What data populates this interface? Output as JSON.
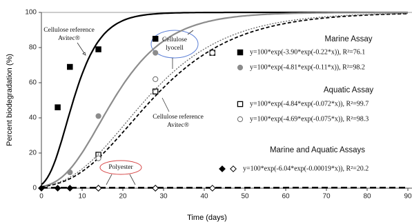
{
  "chart_data": {
    "type": "gompertz-scatter",
    "x_label": "Time (days)",
    "y_label": "Percent biodegradation (%)",
    "xlim": [
      0,
      90
    ],
    "xticks": [
      0,
      10,
      20,
      30,
      40,
      50,
      60,
      70,
      80,
      90
    ],
    "ylim": [
      0,
      100
    ],
    "yticks": [
      0,
      20,
      40,
      60,
      80,
      100
    ],
    "groups": [
      {
        "title": "Marine Assay",
        "series": [
          {
            "name": "y=100*exp(-3.90*exp(-0.22*x)), R²=76.1",
            "color": "#000000",
            "line": "solid",
            "fit": {
              "a": 3.9,
              "b": 0.22
            },
            "points": [
              {
                "marker": "square-filled",
                "x": [
                  4,
                  7,
                  14,
                  28
                ],
                "values": [
                  46,
                  69,
                  79,
                  85
                ]
              }
            ]
          },
          {
            "name": "y=100*exp(-4.81*exp(-0.11*x)), R²=98.2",
            "color": "#8c8c8c",
            "line": "solid",
            "fit": {
              "a": 4.81,
              "b": 0.11
            },
            "points": [
              {
                "marker": "circle-filled",
                "x": [
                  7,
                  14,
                  28
                ],
                "values": [
                  9,
                  41,
                  77
                ]
              }
            ]
          }
        ]
      },
      {
        "title": "Aquatic Assay",
        "series": [
          {
            "name": "y=100*exp(-4.84*exp(-0.072*x)), R²=99.7",
            "color": "#000000",
            "line": "dashed",
            "fit": {
              "a": 4.84,
              "b": 0.072
            },
            "points": [
              {
                "marker": "square-open",
                "x": [
                  14,
                  28,
                  42
                ],
                "values": [
                  19,
                  55,
                  77
                ]
              }
            ]
          },
          {
            "name": "y=100*exp(-4.69*exp(-0.075*x)), R²=98.3",
            "color": "#666666",
            "line": "dotted",
            "fit": {
              "a": 4.69,
              "b": 0.075
            },
            "points": [
              {
                "marker": "circle-open",
                "x": [
                  14,
                  28,
                  42
                ],
                "values": [
                  17,
                  62,
                  77
                ]
              }
            ]
          }
        ]
      },
      {
        "title": "Marine and Aquatic Assays",
        "series": [
          {
            "name": "y=100*exp(-6.04*exp(-0.00019*x)), R²=20.2",
            "color": "#000000",
            "line": "longdash",
            "fit": {
              "a": 6.04,
              "b": 0.00019
            },
            "points": [
              {
                "marker": "diamond-filled",
                "x": [
                  0,
                  4,
                  7,
                  14,
                  28
                ],
                "values": [
                  0,
                  0,
                  0,
                  0,
                  0
                ]
              },
              {
                "marker": "diamond-open",
                "x": [
                  14,
                  28,
                  42
                ],
                "values": [
                  0,
                  0,
                  0
                ]
              }
            ]
          }
        ]
      }
    ],
    "annotations": [
      {
        "lines": [
          "Cellulose reference",
          "Avitec®"
        ]
      },
      {
        "lines": [
          "Cellulose",
          "lyocell"
        ]
      },
      {
        "lines": [
          "Cellulose reference",
          "Avitec®"
        ]
      },
      {
        "lines": [
          "Polyester"
        ]
      }
    ]
  }
}
